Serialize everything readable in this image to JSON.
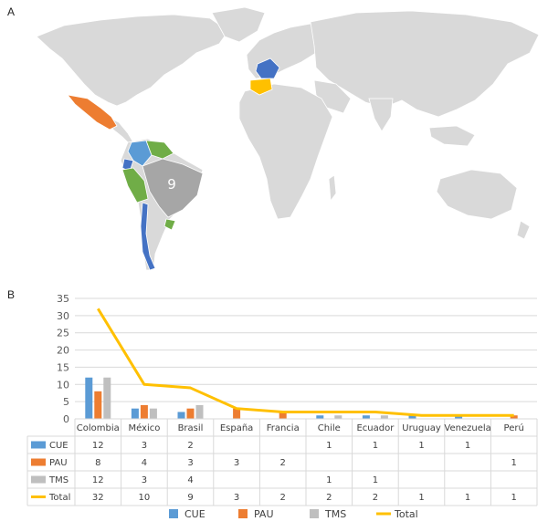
{
  "panels": {
    "a": "A",
    "b": "B"
  },
  "map": {
    "brazil_label": "9",
    "colors": {
      "land": "#d9d9d9",
      "border": "#ffffff",
      "ocean": "#ffffff",
      "cue": "#5b9bd5",
      "pau": "#ed7d31",
      "tms": "#70ad47",
      "count_high": "#a6a6a6",
      "france": "#4472c4",
      "spain": "#ffc000",
      "chile": "#4472c4"
    }
  },
  "chart_data": {
    "type": "bar",
    "categories": [
      "Colombia",
      "México",
      "Brasil",
      "España",
      "Francia",
      "Chile",
      "Ecuador",
      "Uruguay",
      "Venezuela",
      "Perú"
    ],
    "series": [
      {
        "name": "CUE",
        "type": "bar",
        "color": "#5b9bd5",
        "values": [
          12,
          3,
          2,
          null,
          null,
          1,
          1,
          1,
          1,
          null
        ]
      },
      {
        "name": "PAU",
        "type": "bar",
        "color": "#ed7d31",
        "values": [
          8,
          4,
          3,
          3,
          2,
          null,
          null,
          null,
          null,
          1
        ]
      },
      {
        "name": "TMS",
        "type": "bar",
        "color": "#bfbfbf",
        "values": [
          12,
          3,
          4,
          null,
          null,
          1,
          1,
          null,
          null,
          null
        ]
      },
      {
        "name": "Total",
        "type": "line",
        "color": "#ffc000",
        "values": [
          32,
          10,
          9,
          3,
          2,
          2,
          2,
          1,
          1,
          1
        ]
      }
    ],
    "y_ticks": [
      "0",
      "5",
      "10",
      "15",
      "20",
      "25",
      "30",
      "35"
    ],
    "ylim": [
      0,
      35
    ],
    "grid": true,
    "legend_position": "bottom",
    "data_table": true
  }
}
